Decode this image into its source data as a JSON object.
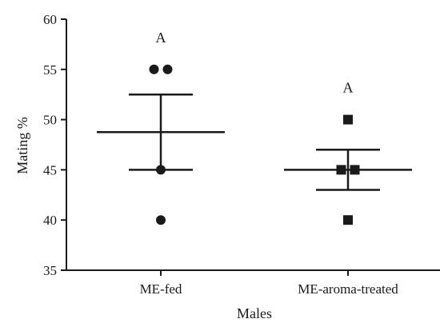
{
  "chart_data": {
    "type": "scatter",
    "xlabel": "Males",
    "ylabel": "Mating %",
    "ylim": [
      35,
      60
    ],
    "yticks": [
      35,
      40,
      45,
      50,
      55,
      60
    ],
    "categories": [
      "ME-fed",
      "ME-aroma-treated"
    ],
    "grid": false,
    "legend": "none",
    "series": [
      {
        "category": "ME-fed",
        "marker": "circle",
        "points": [
          55,
          55,
          45,
          40
        ],
        "mean": 48.75,
        "error_upper": 52.5,
        "error_lower": 45,
        "annotation": "A"
      },
      {
        "category": "ME-aroma-treated",
        "marker": "square",
        "points": [
          50,
          45,
          45,
          40
        ],
        "mean": 45,
        "error_upper": 47,
        "error_lower": 43,
        "annotation": "A"
      }
    ],
    "colors": {
      "marks": "#1a1a1a",
      "axis": "#1a1a1a"
    }
  }
}
